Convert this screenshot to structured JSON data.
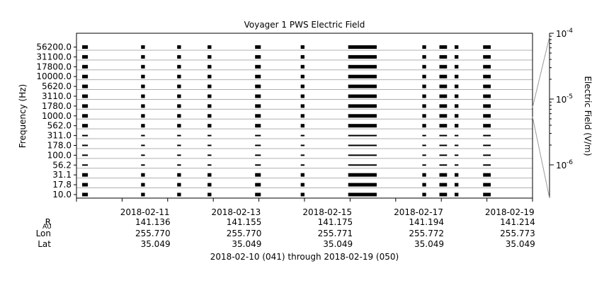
{
  "chart_data": {
    "type": "heatmap",
    "title": "Voyager 1 PWS Electric Field",
    "ylabel": "Frequency (Hz)",
    "y_ticks": [
      "56200.0",
      "31100.0",
      "17800.0",
      "10000.0",
      "5620.0",
      "3110.0",
      "1780.0",
      "1000.0",
      "562.0",
      "311.0",
      "178.0",
      "100.0",
      "56.2",
      "31.1",
      "17.8",
      "10.0"
    ],
    "y_scale": "log",
    "x_ticks": [
      "2018-02-11",
      "2018-02-13",
      "2018-02-15",
      "2018-02-17",
      "2018-02-19"
    ],
    "x_range": [
      "2018-02-10",
      "2018-02-20"
    ],
    "colorbar": {
      "label": "Electric Field (V/m)",
      "scale": "log",
      "ticks": [
        {
          "base": "10",
          "exp": "-4"
        },
        {
          "base": "10",
          "exp": "-5"
        },
        {
          "base": "10",
          "exp": "-6"
        }
      ]
    },
    "data_intervals": [
      [
        "2018-02-10 03:00",
        "2018-02-10 06:00"
      ],
      [
        "2018-02-11 10:00",
        "2018-02-11 12:00"
      ],
      [
        "2018-02-12 05:00",
        "2018-02-12 07:00"
      ],
      [
        "2018-02-12 21:00",
        "2018-02-12 23:00"
      ],
      [
        "2018-02-13 22:00",
        "2018-02-14 01:00"
      ],
      [
        "2018-02-14 22:00",
        "2018-02-15 00:00"
      ],
      [
        "2018-02-15 23:00",
        "2018-02-16 14:00"
      ],
      [
        "2018-02-17 14:00",
        "2018-02-17 16:00"
      ],
      [
        "2018-02-17 23:00",
        "2018-02-18 03:00"
      ],
      [
        "2018-02-18 07:00",
        "2018-02-18 09:00"
      ],
      [
        "2018-02-18 22:00",
        "2018-02-19 02:00"
      ]
    ],
    "grid": true
  },
  "ephemeris": {
    "rows": [
      {
        "label": "R",
        "sub": "AU",
        "values": [
          "141.136",
          "141.155",
          "141.175",
          "141.194",
          "141.214"
        ]
      },
      {
        "label": "Lon",
        "sub": "",
        "values": [
          "255.770",
          "255.770",
          "255.771",
          "255.772",
          "255.773"
        ]
      },
      {
        "label": "Lat",
        "sub": "",
        "values": [
          "35.049",
          "35.049",
          "35.049",
          "35.049",
          "35.049"
        ]
      }
    ]
  },
  "footer": "2018-02-10 (041) through 2018-02-19 (050)",
  "colors": {
    "data": "#000000",
    "grid": "#b0b0b0",
    "background": "#ffffff"
  }
}
